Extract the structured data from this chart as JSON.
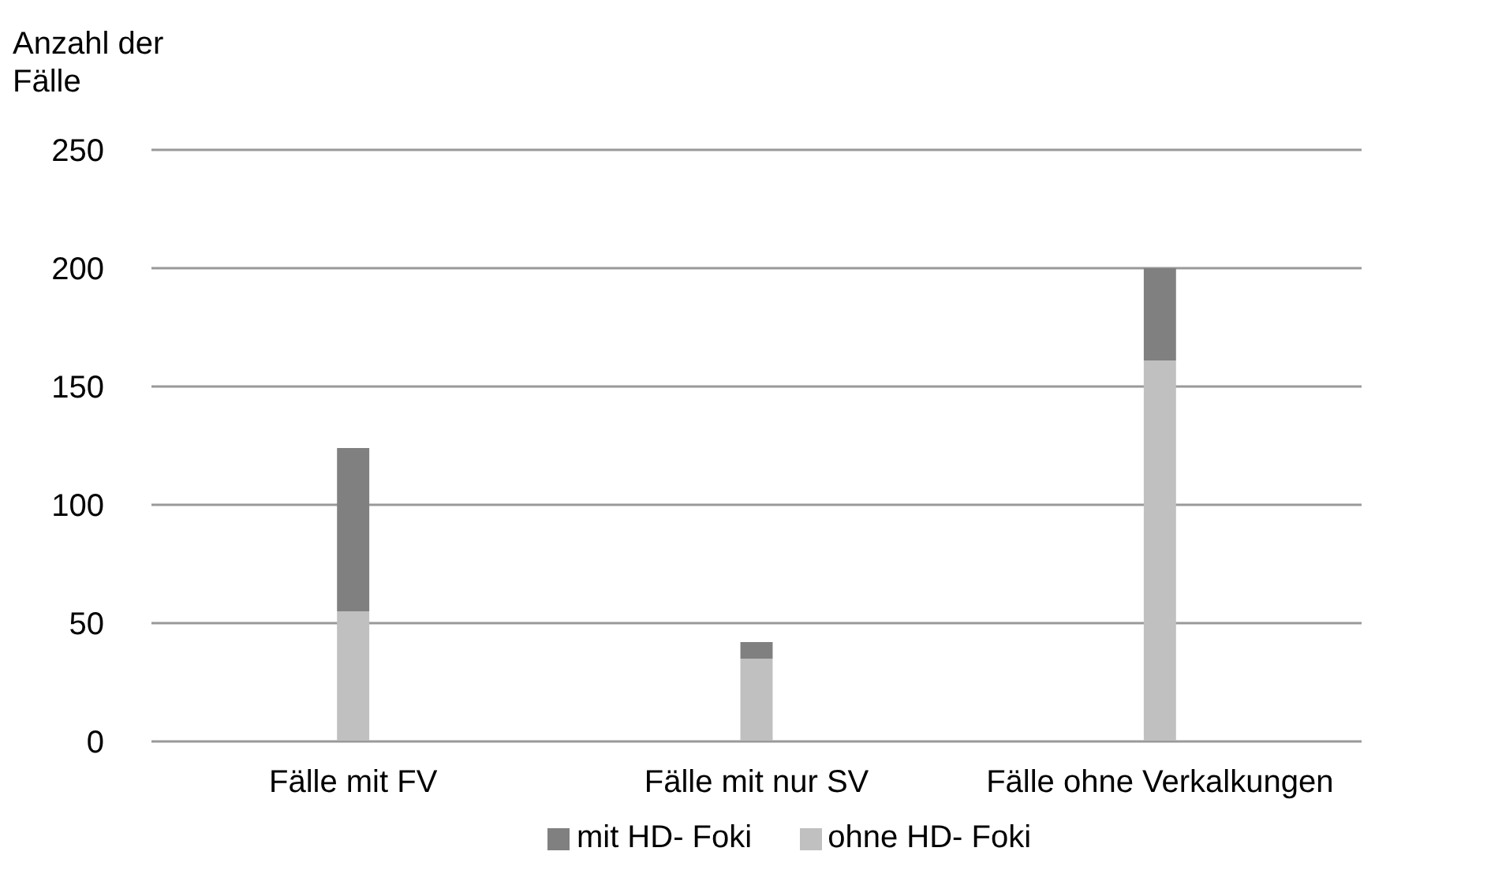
{
  "chart_data": {
    "type": "bar",
    "ylabel": "Anzahl der Fälle",
    "categories": [
      "Fälle mit FV",
      "Fälle mit nur SV",
      "Fälle ohne Verkalkungen"
    ],
    "stacked": true,
    "series": [
      {
        "name": "ohne HD- Foki",
        "color": "#c0c0c0",
        "values": [
          55,
          35,
          161
        ]
      },
      {
        "name": "mit HD- Foki",
        "color": "#808080",
        "values": [
          69,
          7,
          39
        ]
      }
    ],
    "ylim": [
      0,
      250
    ],
    "yticks": [
      0,
      50,
      100,
      150,
      200,
      250
    ],
    "grid": "y",
    "legend": "bottom"
  }
}
